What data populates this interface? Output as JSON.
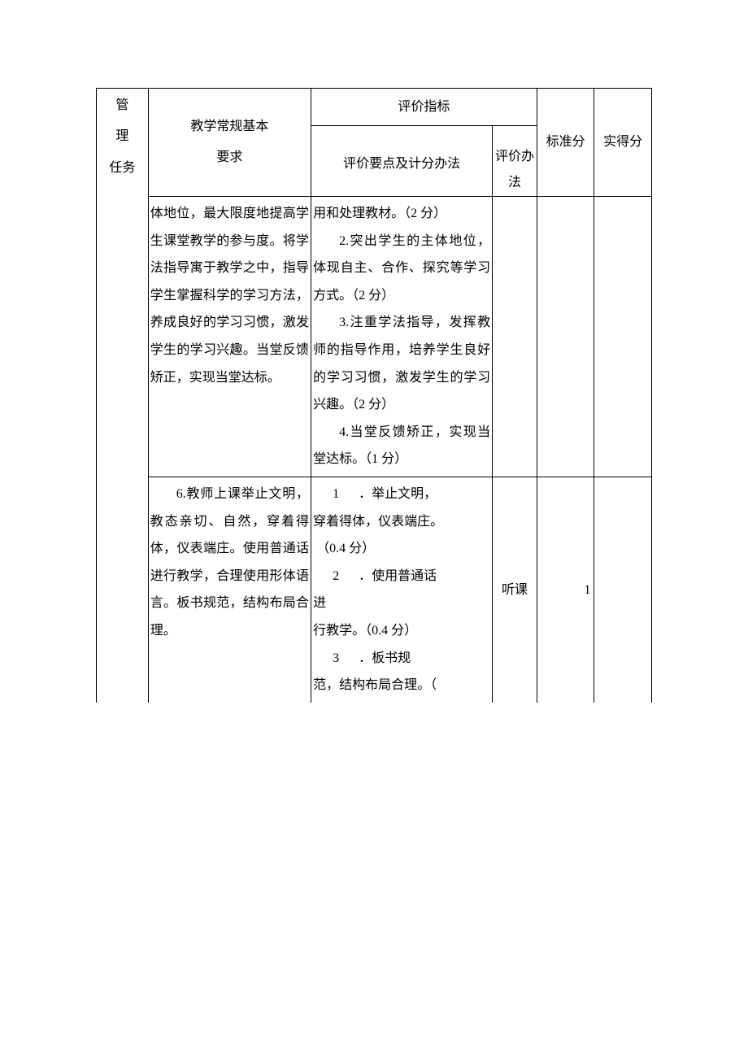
{
  "header": {
    "col_task_l1": "管",
    "col_task_l2": "理",
    "col_task_l3": "任务",
    "col_req_l1": "教学常规基本",
    "col_req_l2": "要求",
    "eval_group": "评价指标",
    "col_points": "评价要点及计分办法",
    "col_method_l1": "评价办",
    "col_method_l2": "法",
    "col_std": "标准分",
    "col_act": "实得分"
  },
  "row1": {
    "req": "体地位，最大限度地提高学生课堂教学的参与度。将学法指导寓于教学之中，指导学生掌握科学的学习方法，养成良好的学习习惯，激发学生的学习兴趣。当堂反馈矫正，实现当堂达标。",
    "points_1": "用和处理教材。（2 分）",
    "points_2_lead": "2.",
    "points_2": "突出学生的主体地位，体现自主、合作、探究等学习方式。（2 分）",
    "points_3_lead": "3.",
    "points_3": "注重学法指导，发挥教师的指导作用，培养学生良好的学习习惯，激发学生的学习兴趣。（2 分）",
    "points_4_lead": "4.",
    "points_4": "当堂反馈矫正，实现当堂达标。（1 分）"
  },
  "row2": {
    "req_lead": "6.",
    "req": "教师上课举止文明，教态亲切、自然，穿着得体，仪表端庄。使用普通话进行教学，合理使用形体语言。板书规范，结构布局合理。",
    "p1_num": "1",
    "p1_txt_a": "．举止文明，",
    "p1_txt_b": "穿着得体，仪表端庄。",
    "p1_score": "（0.4 分）",
    "p2_num": "2",
    "p2_txt_a": "．使用普通话",
    "p2_txt_b": "进",
    "p2_txt_c": "行教学。（0.4 分）",
    "p3_num": "3",
    "p3_txt_a": "．板书规",
    "p3_txt_b": "范，结构布局合理。（",
    "method": "听课",
    "std": "1"
  },
  "colors": {
    "text": "#000000",
    "border": "#000000",
    "background": "#ffffff"
  }
}
